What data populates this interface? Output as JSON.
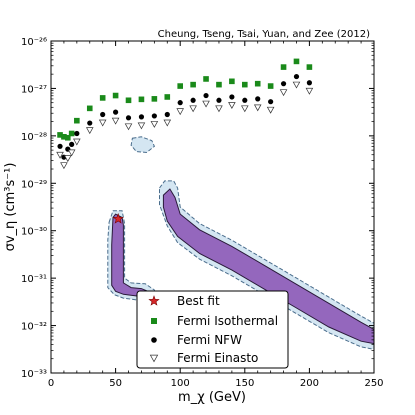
{
  "chart_data": {
    "type": "scatter",
    "citation": "Cheung, Tseng, Tsai, Yuan, and Zee (2012)",
    "xlabel": "m_χ (GeV)",
    "ylabel": "σv_η (cm³s⁻¹)",
    "xlim": [
      0,
      250
    ],
    "ylim_log10": [
      -33,
      -26
    ],
    "yscale": "log",
    "grid": false,
    "legend_position": "bottom-center",
    "x_ticks": [
      "0",
      "50",
      "100",
      "150",
      "200",
      "250"
    ],
    "y_ticks": [
      {
        "exp": -33,
        "label": "10⁻³³"
      },
      {
        "exp": -32,
        "label": "10⁻³²"
      },
      {
        "exp": -31,
        "label": "10⁻³¹"
      },
      {
        "exp": -30,
        "label": "10⁻³⁰"
      },
      {
        "exp": -29,
        "label": "10⁻²⁹"
      },
      {
        "exp": -28,
        "label": "10⁻²⁸"
      },
      {
        "exp": -27,
        "label": "10⁻²⁷"
      },
      {
        "exp": -26,
        "label": "10⁻²⁶"
      }
    ],
    "colors": {
      "region_fill": "#9467bd",
      "outer_fill": "#d4e6f2",
      "outer_edge": "#4a6d8c",
      "isothermal": "#1a8a1a",
      "nfw": "#000000",
      "einasto_fill": "#ffffff",
      "best_fit": "#d62728"
    },
    "best_fit": {
      "name": "Best fit",
      "x": 52,
      "y_log10": -29.75
    },
    "series": [
      {
        "name": "Fermi Isothermal",
        "marker": "square",
        "x": [
          7,
          10,
          13,
          16,
          20,
          30,
          40,
          50,
          60,
          70,
          80,
          90,
          100,
          110,
          120,
          130,
          140,
          150,
          160,
          170,
          180,
          190,
          200
        ],
        "y_log10": [
          -27.98,
          -28.02,
          -28.04,
          -27.95,
          -27.68,
          -27.42,
          -27.2,
          -27.15,
          -27.25,
          -27.23,
          -27.22,
          -27.18,
          -26.95,
          -26.92,
          -26.8,
          -26.92,
          -26.85,
          -26.92,
          -26.9,
          -26.95,
          -26.55,
          -26.43,
          -26.55
        ]
      },
      {
        "name": "Fermi NFW",
        "marker": "circle",
        "x": [
          7,
          10,
          13,
          16,
          20,
          30,
          40,
          50,
          60,
          70,
          80,
          90,
          100,
          110,
          120,
          130,
          140,
          150,
          160,
          170,
          180,
          190,
          200
        ],
        "y_log10": [
          -28.22,
          -28.45,
          -28.28,
          -28.18,
          -27.95,
          -27.73,
          -27.55,
          -27.5,
          -27.62,
          -27.6,
          -27.58,
          -27.55,
          -27.3,
          -27.25,
          -27.15,
          -27.25,
          -27.18,
          -27.25,
          -27.22,
          -27.28,
          -26.9,
          -26.75,
          -26.88
        ]
      },
      {
        "name": "Fermi Einasto",
        "marker": "triangle-down",
        "x": [
          7,
          10,
          13,
          16,
          20,
          30,
          40,
          50,
          60,
          70,
          80,
          90,
          100,
          110,
          120,
          130,
          140,
          150,
          160,
          170,
          180,
          190,
          200
        ],
        "y_log10": [
          -28.4,
          -28.62,
          -28.47,
          -28.35,
          -28.12,
          -27.88,
          -27.72,
          -27.68,
          -27.8,
          -27.78,
          -27.75,
          -27.72,
          -27.48,
          -27.42,
          -27.32,
          -27.42,
          -27.35,
          -27.42,
          -27.4,
          -27.45,
          -27.08,
          -26.92,
          -27.05
        ]
      }
    ],
    "regions": [
      {
        "name": "low-mass-region",
        "outer": [
          [
            45,
            -29.82
          ],
          [
            48,
            -29.58
          ],
          [
            55,
            -29.58
          ],
          [
            57,
            -29.85
          ],
          [
            57,
            -31.0
          ],
          [
            62,
            -31.1
          ],
          [
            73,
            -31.12
          ],
          [
            80,
            -31.25
          ],
          [
            80,
            -31.45
          ],
          [
            72,
            -31.48
          ],
          [
            56,
            -31.42
          ],
          [
            49,
            -31.35
          ],
          [
            44,
            -31.2
          ],
          [
            44,
            -30.2
          ]
        ],
        "inner": [
          [
            48,
            -29.72
          ],
          [
            50,
            -29.65
          ],
          [
            55,
            -29.72
          ],
          [
            56,
            -29.88
          ],
          [
            56,
            -31.1
          ],
          [
            62,
            -31.2
          ],
          [
            70,
            -31.22
          ],
          [
            77,
            -31.3
          ],
          [
            76,
            -31.38
          ],
          [
            68,
            -31.38
          ],
          [
            56,
            -31.34
          ],
          [
            50,
            -31.28
          ],
          [
            47,
            -31.15
          ],
          [
            47,
            -30.3
          ]
        ]
      },
      {
        "name": "high-mass-region",
        "outer": [
          [
            84,
            -29.1
          ],
          [
            88,
            -28.95
          ],
          [
            95,
            -28.95
          ],
          [
            98,
            -29.1
          ],
          [
            100,
            -29.5
          ],
          [
            115,
            -29.85
          ],
          [
            140,
            -30.2
          ],
          [
            165,
            -30.6
          ],
          [
            190,
            -31.0
          ],
          [
            215,
            -31.4
          ],
          [
            240,
            -31.8
          ],
          [
            250,
            -31.95
          ],
          [
            250,
            -32.5
          ],
          [
            240,
            -32.45
          ],
          [
            215,
            -32.15
          ],
          [
            190,
            -31.75
          ],
          [
            165,
            -31.35
          ],
          [
            140,
            -30.95
          ],
          [
            115,
            -30.6
          ],
          [
            98,
            -30.25
          ],
          [
            90,
            -29.9
          ],
          [
            84,
            -29.45
          ]
        ],
        "inner": [
          [
            87,
            -29.25
          ],
          [
            92,
            -29.12
          ],
          [
            96,
            -29.3
          ],
          [
            100,
            -29.65
          ],
          [
            115,
            -29.98
          ],
          [
            140,
            -30.33
          ],
          [
            165,
            -30.73
          ],
          [
            190,
            -31.13
          ],
          [
            215,
            -31.53
          ],
          [
            240,
            -31.93
          ],
          [
            250,
            -32.08
          ],
          [
            250,
            -32.38
          ],
          [
            240,
            -32.33
          ],
          [
            215,
            -32.03
          ],
          [
            190,
            -31.63
          ],
          [
            165,
            -31.23
          ],
          [
            140,
            -30.83
          ],
          [
            115,
            -30.48
          ],
          [
            98,
            -30.12
          ],
          [
            90,
            -29.8
          ],
          [
            87,
            -29.5
          ]
        ]
      },
      {
        "name": "small-region",
        "outer": [
          [
            63,
            -28.05
          ],
          [
            70,
            -28.02
          ],
          [
            78,
            -28.1
          ],
          [
            80,
            -28.22
          ],
          [
            74,
            -28.35
          ],
          [
            66,
            -28.33
          ],
          [
            62,
            -28.2
          ]
        ],
        "inner": []
      }
    ]
  }
}
